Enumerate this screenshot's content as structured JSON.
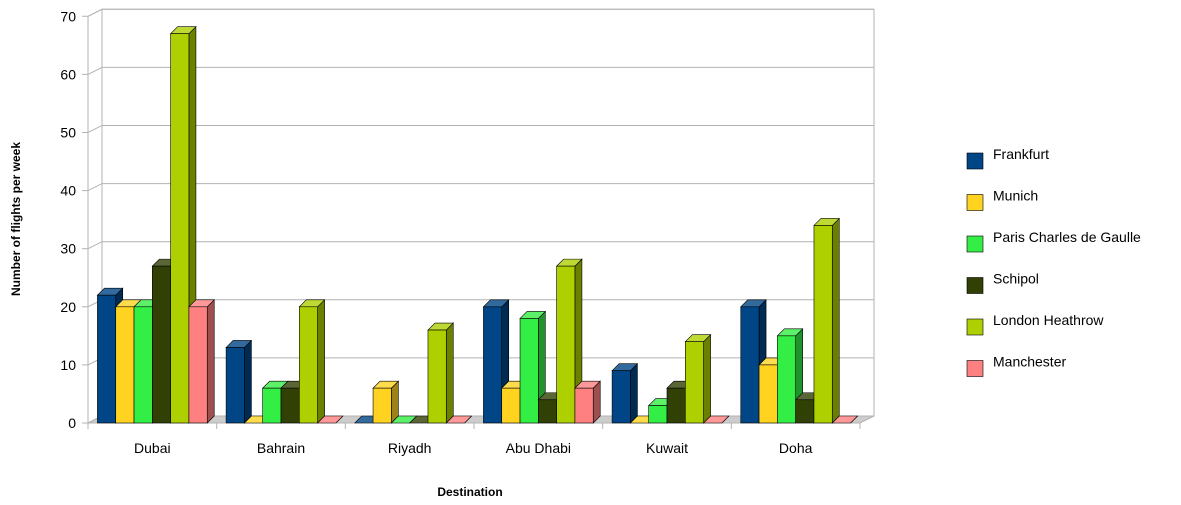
{
  "chart_data": {
    "type": "bar",
    "title": "",
    "xlabel": "Destination",
    "ylabel": "Number of flights per week",
    "ylim": [
      0,
      70
    ],
    "yticks": [
      0,
      10,
      20,
      30,
      40,
      50,
      60,
      70
    ],
    "grid": true,
    "legend_position": "right",
    "categories": [
      "Dubai",
      "Bahrain",
      "Riyadh",
      "Abu Dhabi",
      "Kuwait",
      "Doha"
    ],
    "series": [
      {
        "name": "Frankfurt",
        "color": "#004586",
        "values": [
          22,
          13,
          0,
          20,
          9,
          20
        ]
      },
      {
        "name": "Munich",
        "color": "#ffd320",
        "values": [
          20,
          0,
          6,
          6,
          0,
          10
        ]
      },
      {
        "name": "Paris Charles de Gaulle",
        "color": "#33ee44",
        "values": [
          20,
          6,
          0,
          18,
          3,
          15
        ]
      },
      {
        "name": "Schipol",
        "color": "#314004",
        "values": [
          27,
          6,
          0,
          4,
          6,
          4
        ]
      },
      {
        "name": "London Heathrow",
        "color": "#aecf00",
        "values": [
          67,
          20,
          16,
          27,
          14,
          34
        ]
      },
      {
        "name": "Manchester",
        "color": "#ff8080",
        "values": [
          20,
          0,
          0,
          6,
          0,
          0
        ]
      }
    ]
  }
}
